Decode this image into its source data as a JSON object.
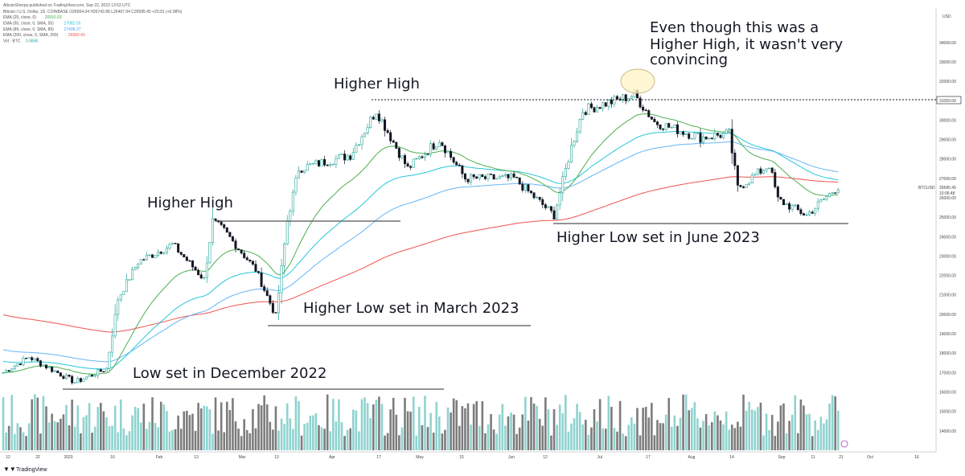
{
  "header": {
    "published": "AltcoinSherpa published on TradingView.com, Sep 22, 2023 13:53 UTC",
    "symbol_line": "Bitcoin / U.S. Dollar, 1D, COINBASE O26564.94 H26742.86 L26467.94 C26585.45 +20.91 (+0.08%)",
    "indicators": [
      {
        "label": "EMA (25, close, 0)",
        "value": "26550.03",
        "color": "#4caf50"
      },
      {
        "label": "EMA (55, close, 0, SMA, 55)",
        "value": "27082.55",
        "color": "#26c6da"
      },
      {
        "label": "EMA (89, close, 0, SMA, 89)",
        "value": "27408.27",
        "color": "#42a5f5"
      },
      {
        "label": "EMA (200, close, 0, SMA, 200)",
        "value": "26982.43",
        "color": "#ef5350"
      },
      {
        "label": "Vol · BTC",
        "value": "3.984K",
        "color": "#26a69a"
      }
    ]
  },
  "price_axis": {
    "currency": "USD",
    "ticks": [
      "34000.00",
      "33000.00",
      "32000.00",
      "31000.00",
      "30000.00",
      "29000.00",
      "28000.00",
      "27000.00",
      "26000.00",
      "25000.00",
      "24000.00",
      "23000.00",
      "22000.00",
      "21000.00",
      "20000.00",
      "19000.00",
      "18000.00",
      "17000.00",
      "16000.00",
      "15000.00",
      "14000.00"
    ],
    "hline_label": "31050.00",
    "last_price_label": "BTCUSD",
    "last_price": "26585.45",
    "countdown": "10:06:48"
  },
  "time_axis": {
    "labels": [
      "12",
      "22",
      "2023",
      "16",
      "Feb",
      "13",
      "Mar",
      "13",
      "Apr",
      "17",
      "May",
      "15",
      "Jun",
      "12",
      "Jul",
      "17",
      "Aug",
      "14",
      "Sep",
      "11",
      "21",
      "Oct",
      "16"
    ]
  },
  "annotations": {
    "higher_high_1": "Higher High",
    "higher_high_2": "Higher High",
    "higher_high_3_line1": "Even though this was a",
    "higher_high_3_line2": "Higher High, it wasn't very",
    "higher_high_3_line3": "convincing",
    "low_dec": "Low set in December 2022",
    "higher_low_mar": "Higher Low set in March 2023",
    "higher_low_jun": "Higher Low set in June 2023"
  },
  "footer": {
    "brand": "TradingView"
  },
  "chart_data": {
    "type": "candlestick",
    "symbol": "BTCUSD",
    "interval": "1D",
    "x_range": [
      "2022-12-05",
      "2023-10-25"
    ],
    "ylim": [
      13500,
      35000
    ],
    "colors": {
      "up": "#26a69a",
      "down": "#131722",
      "ema25": "#4caf50",
      "ema55": "#26c6da",
      "ema89": "#64b5f6",
      "ema200": "#ef5350",
      "vol_up": "#8fd3cf",
      "vol_down": "#7c7c7c"
    },
    "key_price_path": [
      {
        "date": "2022-12-05",
        "close": 17000
      },
      {
        "date": "2022-12-14",
        "close": 17800
      },
      {
        "date": "2022-12-30",
        "close": 16500
      },
      {
        "date": "2023-01-10",
        "close": 17200
      },
      {
        "date": "2023-01-14",
        "close": 20800
      },
      {
        "date": "2023-01-21",
        "close": 22700
      },
      {
        "date": "2023-02-02",
        "close": 23600
      },
      {
        "date": "2023-02-13",
        "close": 21800
      },
      {
        "date": "2023-02-16",
        "close": 24800
      },
      {
        "date": "2023-02-20",
        "close": 24300
      },
      {
        "date": "2023-03-03",
        "close": 22300
      },
      {
        "date": "2023-03-10",
        "close": 19900
      },
      {
        "date": "2023-03-14",
        "close": 24800
      },
      {
        "date": "2023-03-18",
        "close": 27500
      },
      {
        "date": "2023-04-05",
        "close": 28200
      },
      {
        "date": "2023-04-14",
        "close": 30500
      },
      {
        "date": "2023-04-25",
        "close": 27500
      },
      {
        "date": "2023-05-06",
        "close": 29000
      },
      {
        "date": "2023-05-15",
        "close": 27000
      },
      {
        "date": "2023-06-01",
        "close": 27000
      },
      {
        "date": "2023-06-15",
        "close": 25100
      },
      {
        "date": "2023-06-21",
        "close": 28600
      },
      {
        "date": "2023-06-25",
        "close": 30500
      },
      {
        "date": "2023-07-13",
        "close": 31300
      },
      {
        "date": "2023-07-20",
        "close": 29900
      },
      {
        "date": "2023-08-05",
        "close": 29100
      },
      {
        "date": "2023-08-15",
        "close": 29300
      },
      {
        "date": "2023-08-18",
        "close": 26500
      },
      {
        "date": "2023-08-29",
        "close": 27700
      },
      {
        "date": "2023-09-01",
        "close": 25900
      },
      {
        "date": "2023-09-11",
        "close": 25100
      },
      {
        "date": "2023-09-22",
        "close": 26585
      }
    ],
    "horizontal_lines": [
      {
        "name": "Low set in December 2022",
        "price": 16400
      },
      {
        "name": "Higher Low set in March 2023",
        "price": 19600
      },
      {
        "name": "Higher High (Feb)",
        "price": 25200
      },
      {
        "name": "Higher Low set in June 2023",
        "price": 24800
      },
      {
        "name": "Higher High (Apr)",
        "price": 31050
      }
    ]
  }
}
